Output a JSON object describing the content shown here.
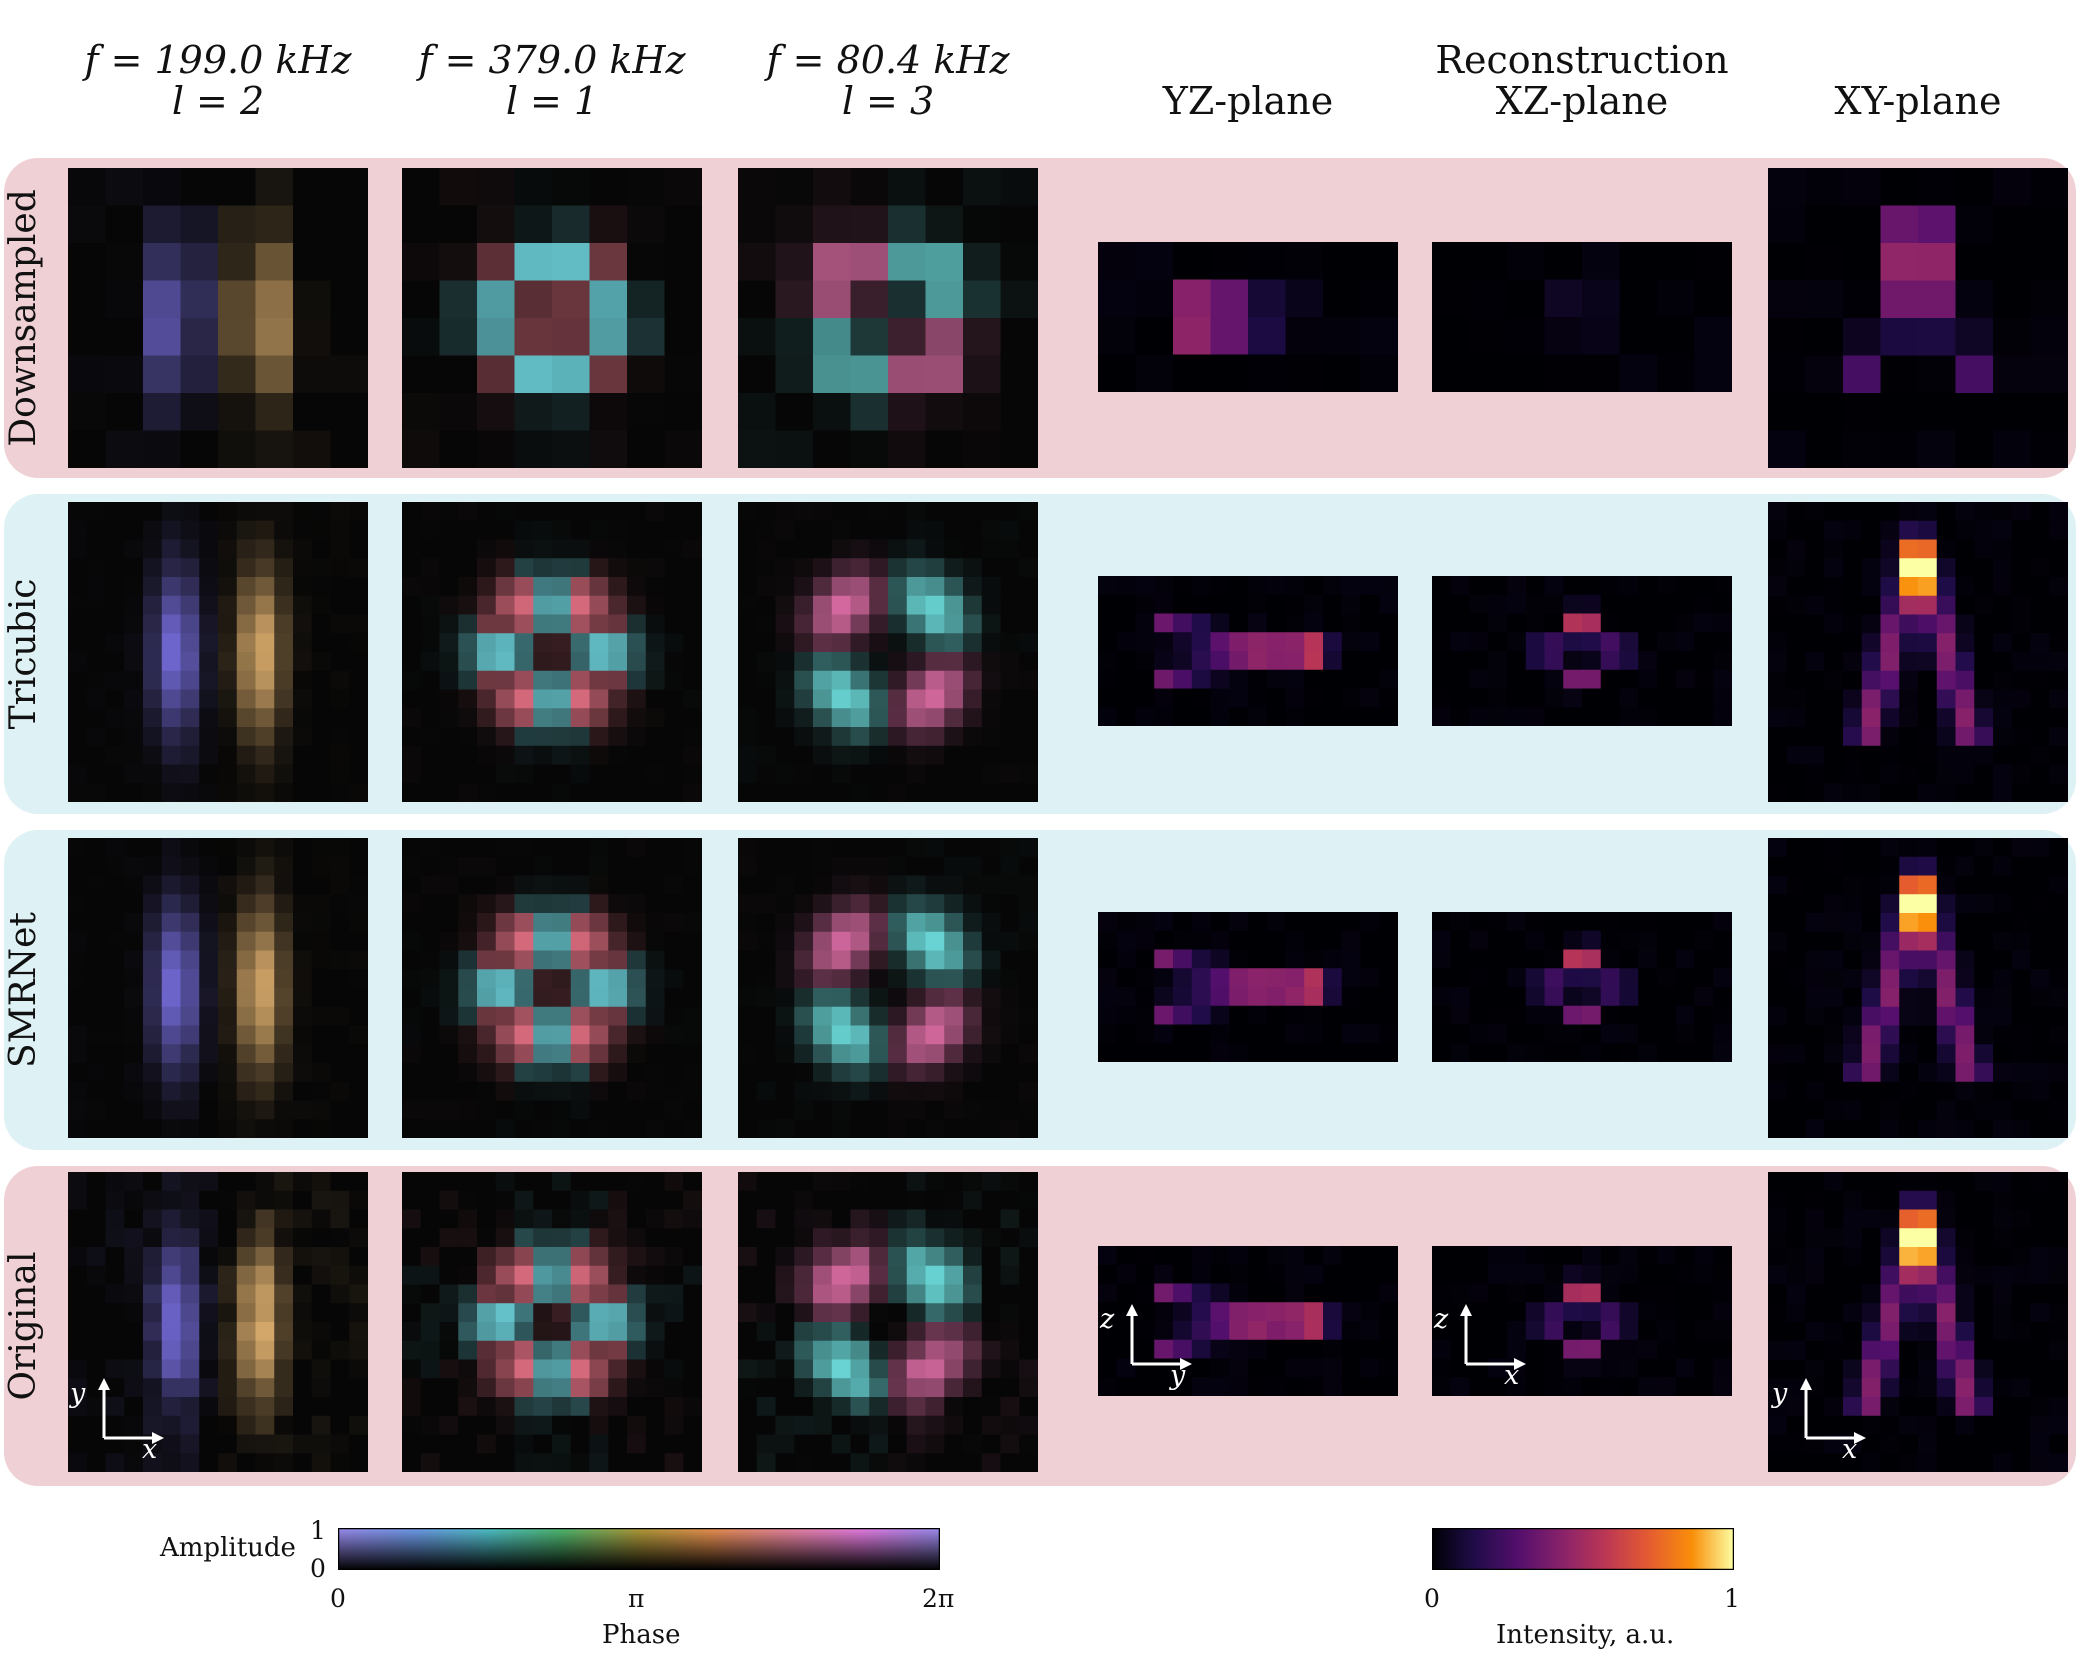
{
  "header": {
    "col1": {
      "freq": "f = 199.0 kHz",
      "mode": "l = 2"
    },
    "col2": {
      "freq": "f = 379.0 kHz",
      "mode": "l = 1"
    },
    "col3": {
      "freq": "f = 80.4 kHz",
      "mode": "l = 3"
    },
    "recon_title": "Reconstruction",
    "yz": "YZ-plane",
    "xz": "XZ-plane",
    "xy": "XY-plane"
  },
  "rows": [
    {
      "label": "Downsampled",
      "band_color": "#efd0d4"
    },
    {
      "label": "Tricubic",
      "band_color": "#def1f4"
    },
    {
      "label": "SMRNet",
      "band_color": "#def1f4"
    },
    {
      "label": "Original",
      "band_color": "#efd0d4"
    }
  ],
  "axes_labels": {
    "col1": {
      "v": "y",
      "h": "x"
    },
    "yz": {
      "v": "z",
      "h": "y"
    },
    "xz": {
      "v": "z",
      "h": "x"
    },
    "xy": {
      "v": "y",
      "h": "x"
    }
  },
  "colorbar_phase": {
    "amplitude_label": "Amplitude",
    "amp_top": "1",
    "amp_bottom": "0",
    "ticks": [
      "0",
      "π",
      "2π"
    ],
    "label": "Phase"
  },
  "colorbar_intensity": {
    "ticks": [
      "0",
      "1"
    ],
    "label": "Intensity, a.u."
  }
}
